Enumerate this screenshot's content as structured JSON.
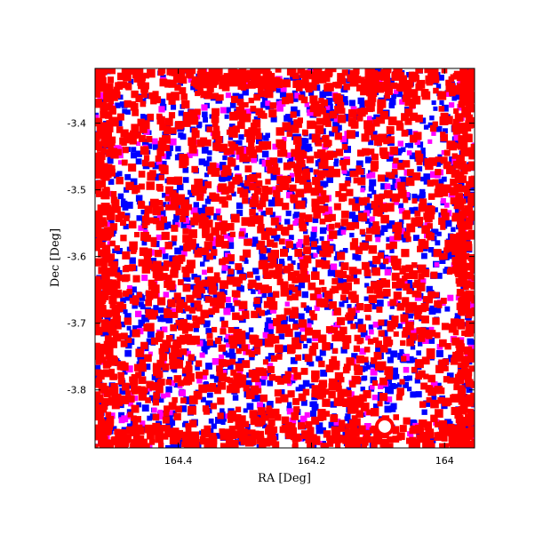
{
  "chart_data": {
    "type": "scatter",
    "title": "",
    "xlabel": "RA [Deg]",
    "ylabel": "Dec [Deg]",
    "xlim": [
      164.525,
      163.955
    ],
    "ylim": [
      -3.887,
      -3.318
    ],
    "x_inverted": true,
    "grid": false,
    "legend": "none",
    "xticks": [
      {
        "value": 164.4,
        "label": "164.4"
      },
      {
        "value": 164.2,
        "label": "164.2"
      },
      {
        "value": 164.0,
        "label": "164"
      }
    ],
    "yticks": [
      {
        "value": -3.4,
        "label": "-3.4"
      },
      {
        "value": -3.5,
        "label": "-3.5"
      },
      {
        "value": -3.6,
        "label": "-3.6"
      },
      {
        "value": -3.7,
        "label": "-3.7"
      },
      {
        "value": -3.8,
        "label": "-3.8"
      }
    ],
    "series": [
      {
        "color": "#0000ff",
        "marker": "square",
        "approx_points": 1500,
        "distribution": "uniform over field"
      },
      {
        "color": "#ff00ff",
        "marker": "square",
        "approx_points": 400,
        "distribution": "uniform over field"
      },
      {
        "color": "#ff0000",
        "marker": "square",
        "approx_points": 2600,
        "distribution": "uniform over field, dense at edges"
      }
    ],
    "annotations": [
      {
        "type": "hole",
        "ra": 164.09,
        "dec": -3.855
      }
    ]
  },
  "colors": {
    "blue": "#0000ff",
    "magenta": "#ff00ff",
    "red": "#ff0000",
    "axis": "#000000"
  }
}
